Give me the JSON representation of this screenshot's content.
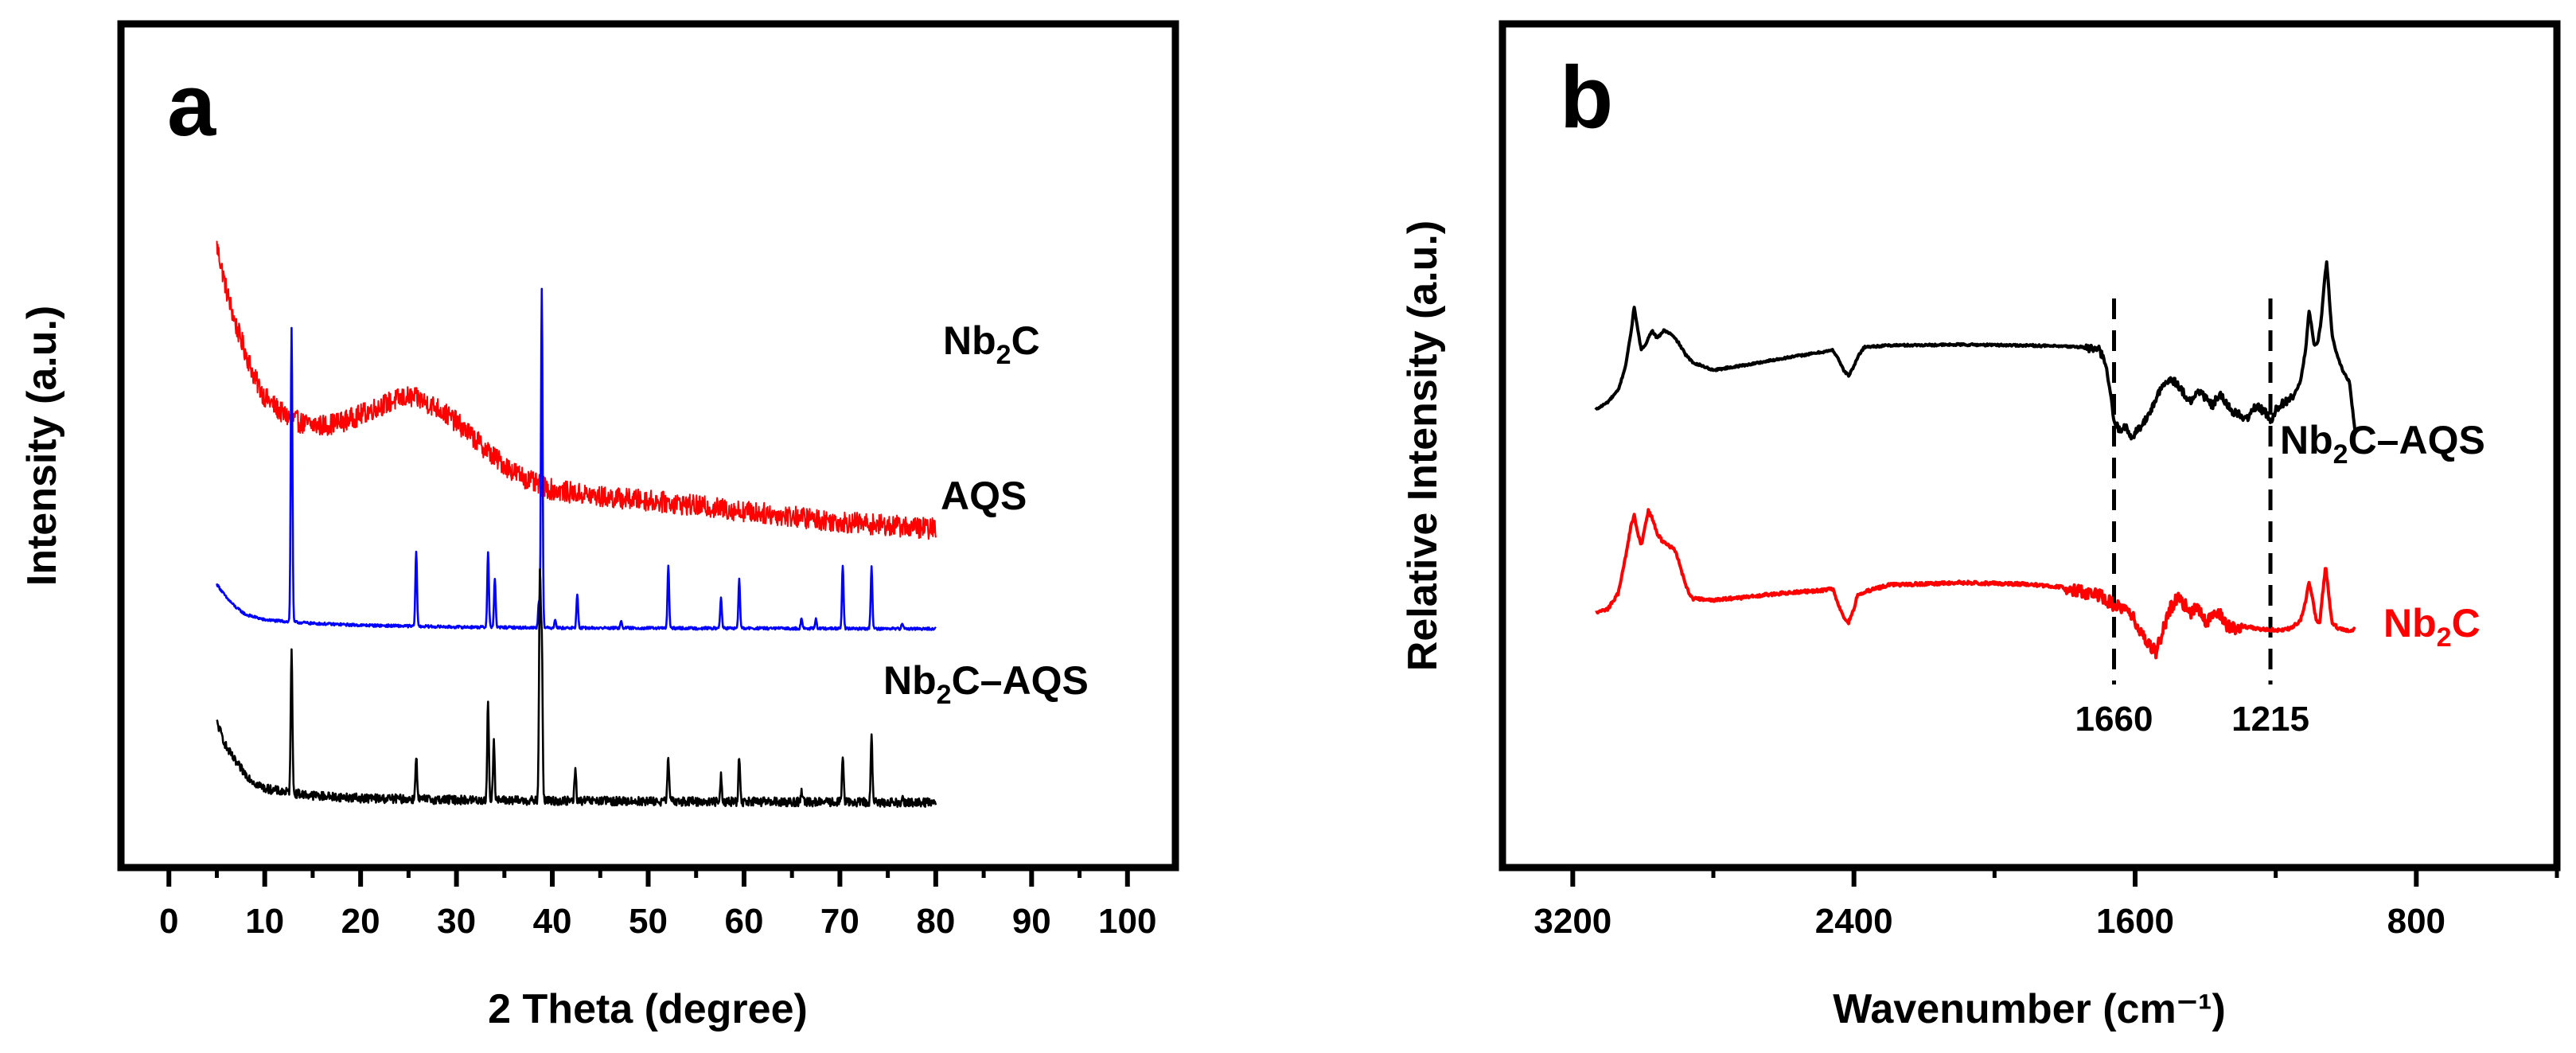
{
  "chart_data": [
    {
      "type": "line",
      "panel_label": "a",
      "title": "",
      "xlabel": "2 Theta (degree)",
      "ylabel": "Intensity (a.u.)",
      "xlim": [
        -5,
        105
      ],
      "xticks": [
        0,
        10,
        20,
        30,
        40,
        50,
        60,
        70,
        80,
        90,
        100
      ],
      "yticks_shown": false,
      "legend": "inline-right",
      "series": [
        {
          "name": "Nb2C",
          "label_parts": [
            "Nb",
            "2",
            "C"
          ],
          "color": "#ff0000",
          "baseline": 0.5,
          "points": [
            [
              5,
              3.8
            ],
            [
              6,
              3.3
            ],
            [
              7,
              2.9
            ],
            [
              8,
              2.6
            ],
            [
              9,
              2.3
            ],
            [
              10,
              2.1
            ],
            [
              12,
              1.9
            ],
            [
              14,
              1.8
            ],
            [
              16,
              1.78
            ],
            [
              18,
              1.82
            ],
            [
              20,
              1.9
            ],
            [
              22,
              2.0
            ],
            [
              24,
              2.08
            ],
            [
              25,
              2.1
            ],
            [
              26,
              2.08
            ],
            [
              28,
              1.98
            ],
            [
              30,
              1.82
            ],
            [
              32,
              1.62
            ],
            [
              34,
              1.42
            ],
            [
              36,
              1.26
            ],
            [
              38,
              1.14
            ],
            [
              40,
              1.06
            ],
            [
              45,
              0.98
            ],
            [
              50,
              0.94
            ],
            [
              55,
              0.88
            ],
            [
              60,
              0.82
            ],
            [
              65,
              0.76
            ],
            [
              70,
              0.7
            ],
            [
              75,
              0.66
            ],
            [
              80,
              0.62
            ]
          ],
          "noise": 0.12,
          "peaks": []
        },
        {
          "name": "AQS",
          "label_parts": [
            "AQS"
          ],
          "color": "#0000ff",
          "baseline": 0.0,
          "points": [
            [
              5,
              0.5
            ],
            [
              6,
              0.35
            ],
            [
              7,
              0.24
            ],
            [
              8,
              0.16
            ],
            [
              10,
              0.1
            ],
            [
              15,
              0.06
            ],
            [
              20,
              0.04
            ],
            [
              30,
              0.02
            ],
            [
              40,
              0.01
            ],
            [
              80,
              0.0
            ]
          ],
          "noise": 0.015,
          "peaks": [
            [
              12.8,
              3.3
            ],
            [
              25.8,
              0.85
            ],
            [
              33.3,
              0.85
            ],
            [
              34.0,
              0.55
            ],
            [
              38.6,
              0.3
            ],
            [
              38.9,
              3.8
            ],
            [
              40.3,
              0.1
            ],
            [
              42.6,
              0.38
            ],
            [
              47.2,
              0.08
            ],
            [
              52.1,
              0.7
            ],
            [
              57.6,
              0.35
            ],
            [
              59.5,
              0.55
            ],
            [
              66.0,
              0.12
            ],
            [
              67.5,
              0.1
            ],
            [
              70.3,
              0.7
            ],
            [
              73.3,
              0.7
            ],
            [
              76.5,
              0.06
            ]
          ]
        },
        {
          "name": "Nb2C–AQS",
          "label_parts": [
            "Nb",
            "2",
            "C–AQS"
          ],
          "color": "#000000",
          "baseline": -1.95,
          "points": [
            [
              5,
              0.9
            ],
            [
              6,
              0.62
            ],
            [
              7,
              0.45
            ],
            [
              8,
              0.32
            ],
            [
              9,
              0.22
            ],
            [
              10,
              0.16
            ],
            [
              12,
              0.12
            ],
            [
              15,
              0.08
            ],
            [
              20,
              0.05
            ],
            [
              30,
              0.03
            ],
            [
              40,
              0.02
            ],
            [
              80,
              0.0
            ]
          ],
          "noise": 0.05,
          "peaks": [
            [
              12.8,
              1.65
            ],
            [
              25.8,
              0.5
            ],
            [
              33.3,
              1.1
            ],
            [
              33.9,
              0.7
            ],
            [
              38.7,
              2.5
            ],
            [
              38.9,
              1.8
            ],
            [
              42.4,
              0.35
            ],
            [
              52.1,
              0.5
            ],
            [
              57.6,
              0.3
            ],
            [
              59.5,
              0.5
            ],
            [
              66.0,
              0.1
            ],
            [
              70.3,
              0.55
            ],
            [
              73.3,
              0.75
            ],
            [
              76.5,
              0.06
            ]
          ]
        }
      ]
    },
    {
      "type": "line",
      "panel_label": "b",
      "title": "",
      "xlabel": "Wavenumber (cm⁻¹)",
      "ylabel": "Relative Intensity (a.u.)",
      "xlim": [
        3400,
        400
      ],
      "x_reversed": true,
      "xticks": [
        3200,
        2400,
        1600,
        800
      ],
      "yticks_shown": false,
      "legend": "inline-right",
      "annotations": [
        {
          "x": 1660,
          "label": "1660",
          "style": "dashed"
        },
        {
          "x": 1215,
          "label": "1215",
          "style": "dashed"
        }
      ],
      "series": [
        {
          "name": "Nb2C–AQS",
          "label_parts": [
            "Nb",
            "2",
            "C–AQS"
          ],
          "label_color": "#000000",
          "color": "#000000",
          "points": [
            [
              3135,
              0.75
            ],
            [
              3100,
              0.85
            ],
            [
              3070,
              1.0
            ],
            [
              3050,
              1.3
            ],
            [
              3035,
              1.7
            ],
            [
              3025,
              2.05
            ],
            [
              3015,
              1.75
            ],
            [
              3005,
              1.5
            ],
            [
              2990,
              1.6
            ],
            [
              2975,
              1.75
            ],
            [
              2960,
              1.65
            ],
            [
              2940,
              1.75
            ],
            [
              2920,
              1.7
            ],
            [
              2900,
              1.6
            ],
            [
              2880,
              1.45
            ],
            [
              2860,
              1.35
            ],
            [
              2800,
              1.25
            ],
            [
              2700,
              1.32
            ],
            [
              2600,
              1.4
            ],
            [
              2500,
              1.47
            ],
            [
              2460,
              1.5
            ],
            [
              2445,
              1.4
            ],
            [
              2430,
              1.25
            ],
            [
              2415,
              1.18
            ],
            [
              2400,
              1.3
            ],
            [
              2385,
              1.45
            ],
            [
              2370,
              1.54
            ],
            [
              2300,
              1.56
            ],
            [
              2100,
              1.57
            ],
            [
              1900,
              1.56
            ],
            [
              1750,
              1.54
            ],
            [
              1700,
              1.5
            ],
            [
              1680,
              1.25
            ],
            [
              1660,
              0.6
            ],
            [
              1645,
              0.5
            ],
            [
              1630,
              0.55
            ],
            [
              1610,
              0.4
            ],
            [
              1595,
              0.5
            ],
            [
              1580,
              0.55
            ],
            [
              1560,
              0.7
            ],
            [
              1540,
              0.9
            ],
            [
              1520,
              1.05
            ],
            [
              1500,
              1.15
            ],
            [
              1480,
              1.08
            ],
            [
              1460,
              0.95
            ],
            [
              1440,
              0.85
            ],
            [
              1420,
              1.0
            ],
            [
              1400,
              0.9
            ],
            [
              1380,
              0.8
            ],
            [
              1360,
              0.95
            ],
            [
              1340,
              0.82
            ],
            [
              1320,
              0.72
            ],
            [
              1300,
              0.68
            ],
            [
              1285,
              0.62
            ],
            [
              1270,
              0.72
            ],
            [
              1255,
              0.8
            ],
            [
              1240,
              0.75
            ],
            [
              1225,
              0.7
            ],
            [
              1215,
              0.6
            ],
            [
              1200,
              0.75
            ],
            [
              1185,
              0.82
            ],
            [
              1170,
              0.86
            ],
            [
              1150,
              0.92
            ],
            [
              1130,
              1.1
            ],
            [
              1115,
              1.5
            ],
            [
              1105,
              2.0
            ],
            [
              1098,
              1.8
            ],
            [
              1090,
              1.55
            ],
            [
              1080,
              1.6
            ],
            [
              1070,
              1.9
            ],
            [
              1062,
              2.35
            ],
            [
              1055,
              2.6
            ],
            [
              1048,
              2.2
            ],
            [
              1040,
              1.7
            ],
            [
              1030,
              1.5
            ],
            [
              1010,
              1.25
            ],
            [
              990,
              1.1
            ],
            [
              975,
              0.5
            ]
          ],
          "noise": 0.05,
          "noise_range": [
            1750,
            1150
          ]
        },
        {
          "name": "Nb2C",
          "label_parts": [
            "Nb",
            "2",
            "C"
          ],
          "label_color": "#ff0000",
          "color": "#ff0000",
          "points": [
            [
              3135,
              -1.8
            ],
            [
              3100,
              -1.75
            ],
            [
              3070,
              -1.55
            ],
            [
              3050,
              -1.1
            ],
            [
              3035,
              -0.72
            ],
            [
              3025,
              -0.58
            ],
            [
              3015,
              -0.8
            ],
            [
              3005,
              -0.95
            ],
            [
              2995,
              -0.72
            ],
            [
              2985,
              -0.52
            ],
            [
              2975,
              -0.6
            ],
            [
              2960,
              -0.8
            ],
            [
              2945,
              -0.9
            ],
            [
              2930,
              -0.95
            ],
            [
              2910,
              -1.0
            ],
            [
              2895,
              -1.2
            ],
            [
              2880,
              -1.45
            ],
            [
              2860,
              -1.62
            ],
            [
              2800,
              -1.64
            ],
            [
              2700,
              -1.6
            ],
            [
              2600,
              -1.55
            ],
            [
              2500,
              -1.52
            ],
            [
              2460,
              -1.5
            ],
            [
              2445,
              -1.7
            ],
            [
              2430,
              -1.85
            ],
            [
              2415,
              -1.92
            ],
            [
              2400,
              -1.75
            ],
            [
              2390,
              -1.58
            ],
            [
              2380,
              -1.55
            ],
            [
              2300,
              -1.45
            ],
            [
              2100,
              -1.42
            ],
            [
              1900,
              -1.44
            ],
            [
              1800,
              -1.48
            ],
            [
              1750,
              -1.54
            ],
            [
              1700,
              -1.58
            ],
            [
              1660,
              -1.7
            ],
            [
              1640,
              -1.75
            ],
            [
              1620,
              -1.78
            ],
            [
              1600,
              -1.9
            ],
            [
              1580,
              -2.05
            ],
            [
              1560,
              -2.2
            ],
            [
              1540,
              -2.3
            ],
            [
              1520,
              -2.0
            ],
            [
              1500,
              -1.75
            ],
            [
              1480,
              -1.6
            ],
            [
              1460,
              -1.7
            ],
            [
              1440,
              -1.8
            ],
            [
              1420,
              -1.72
            ],
            [
              1400,
              -1.9
            ],
            [
              1380,
              -1.86
            ],
            [
              1360,
              -1.82
            ],
            [
              1340,
              -1.95
            ],
            [
              1320,
              -2.0
            ],
            [
              1300,
              -1.96
            ],
            [
              1250,
              -2.0
            ],
            [
              1200,
              -2.02
            ],
            [
              1160,
              -2.0
            ],
            [
              1130,
              -1.9
            ],
            [
              1115,
              -1.65
            ],
            [
              1105,
              -1.42
            ],
            [
              1095,
              -1.62
            ],
            [
              1085,
              -1.9
            ],
            [
              1075,
              -1.92
            ],
            [
              1065,
              -1.5
            ],
            [
              1058,
              -1.2
            ],
            [
              1050,
              -1.55
            ],
            [
              1040,
              -1.92
            ],
            [
              1020,
              -2.0
            ],
            [
              990,
              -2.02
            ],
            [
              975,
              -2.0
            ]
          ],
          "noise": 0.08,
          "noise_range": [
            1800,
            1300
          ]
        }
      ]
    }
  ]
}
